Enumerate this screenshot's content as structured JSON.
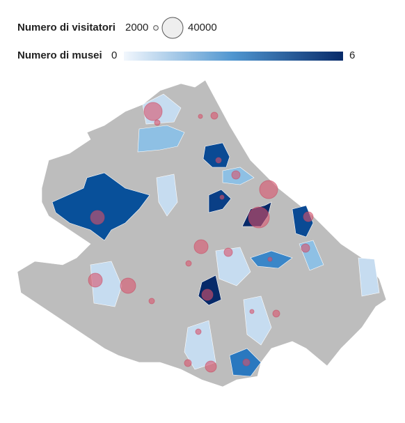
{
  "legend": {
    "size": {
      "title": "Numero di visitatori",
      "min": 2000,
      "max": 40000
    },
    "color": {
      "title": "Numero di musei",
      "min": 0,
      "max": 6,
      "colors": [
        "#f2f7fd",
        "#4f95cf",
        "#072a69"
      ]
    }
  }
}
